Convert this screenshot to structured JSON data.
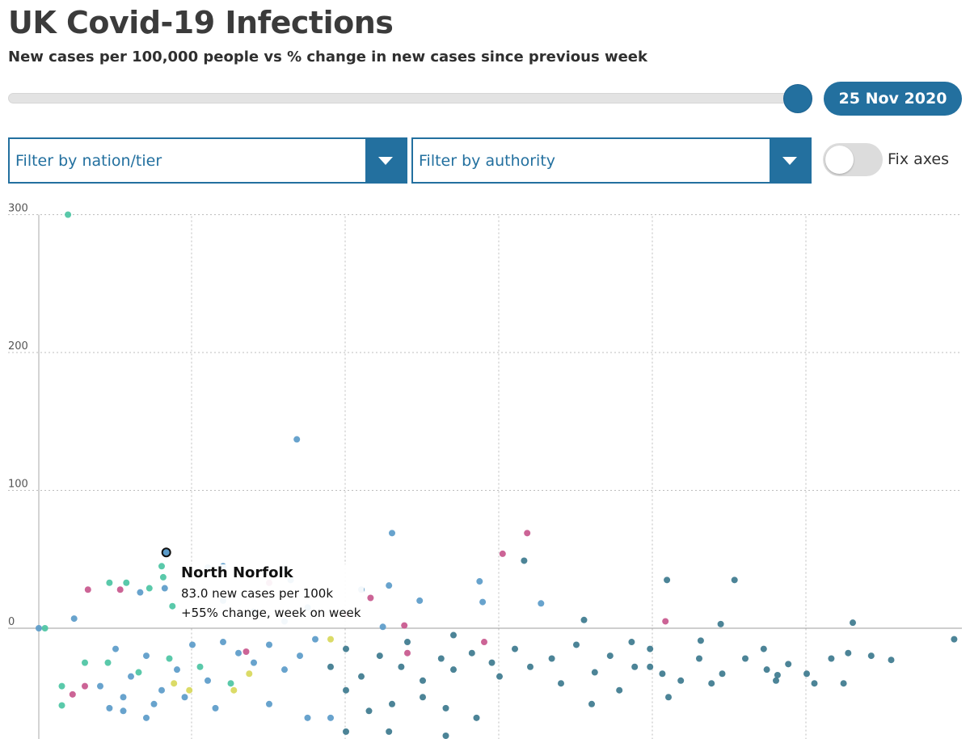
{
  "header": {
    "title": "UK Covid-19 Infections",
    "subtitle": "New cases per 100,000 people vs % change in new cases since previous week"
  },
  "date_slider": {
    "value_label": "25 Nov 2020"
  },
  "filters": {
    "nation_placeholder": "Filter by nation/tier",
    "authority_placeholder": "Filter by authority"
  },
  "toggle": {
    "label": "Fix axes",
    "on": false
  },
  "colors": {
    "accent": "#23709f",
    "series_blue": "#5b9bc9",
    "series_teal": "#3d7a8e",
    "series_green": "#4cc4a3",
    "series_pink": "#c8578d",
    "series_yellow": "#d8d85a"
  },
  "tooltip": {
    "name": "North Norfolk",
    "cases_line": "83.0 new cases per 100k",
    "change_line": "+55% change, week on week"
  },
  "chart_data": {
    "type": "scatter",
    "title": "UK Covid-19 Infections",
    "subtitle": "New cases per 100,000 people vs % change in new cases since previous week",
    "xlabel": "",
    "ylabel": "",
    "ylim": [
      -80,
      300
    ],
    "yticks": [
      0,
      100,
      200,
      300
    ],
    "grid": true,
    "highlight": {
      "name": "North Norfolk",
      "x": 83.0,
      "y": 55
    },
    "points": [
      {
        "x": 0,
        "y": 0,
        "c": "series_blue"
      },
      {
        "x": 4,
        "y": 0,
        "c": "series_green"
      },
      {
        "x": 19,
        "y": 300,
        "c": "series_green"
      },
      {
        "x": 168,
        "y": 137,
        "c": "series_blue"
      },
      {
        "x": 230,
        "y": 69,
        "c": "series_blue"
      },
      {
        "x": 318,
        "y": 69,
        "c": "series_pink"
      },
      {
        "x": 302,
        "y": 54,
        "c": "series_pink"
      },
      {
        "x": 316,
        "y": 49,
        "c": "series_teal"
      },
      {
        "x": 248,
        "y": 20,
        "c": "series_blue"
      },
      {
        "x": 228,
        "y": 31,
        "c": "series_blue"
      },
      {
        "x": 287,
        "y": 34,
        "c": "series_blue"
      },
      {
        "x": 289,
        "y": 19,
        "c": "series_blue"
      },
      {
        "x": 327,
        "y": 18,
        "c": "series_blue"
      },
      {
        "x": 355,
        "y": 6,
        "c": "series_teal"
      },
      {
        "x": 409,
        "y": 35,
        "c": "series_teal"
      },
      {
        "x": 408,
        "y": 5,
        "c": "series_pink"
      },
      {
        "x": 453,
        "y": 35,
        "c": "series_teal"
      },
      {
        "x": 444,
        "y": 3,
        "c": "series_teal"
      },
      {
        "x": 530,
        "y": 4,
        "c": "series_teal"
      },
      {
        "x": 596,
        "y": -8,
        "c": "series_teal"
      },
      {
        "x": 120,
        "y": 45,
        "c": "series_blue"
      },
      {
        "x": 110,
        "y": 44,
        "c": "series_blue"
      },
      {
        "x": 160,
        "y": 43,
        "c": "series_blue"
      },
      {
        "x": 150,
        "y": 33,
        "c": "series_pink"
      },
      {
        "x": 210,
        "y": 28,
        "c": "series_blue"
      },
      {
        "x": 216,
        "y": 22,
        "c": "series_pink"
      },
      {
        "x": 164,
        "y": 35,
        "c": "series_blue"
      },
      {
        "x": 80,
        "y": 45,
        "c": "series_green"
      },
      {
        "x": 81,
        "y": 37,
        "c": "series_green"
      },
      {
        "x": 82,
        "y": 29,
        "c": "series_blue"
      },
      {
        "x": 72,
        "y": 29,
        "c": "series_green"
      },
      {
        "x": 66,
        "y": 26,
        "c": "series_blue"
      },
      {
        "x": 57,
        "y": 33,
        "c": "series_green"
      },
      {
        "x": 53,
        "y": 28,
        "c": "series_pink"
      },
      {
        "x": 46,
        "y": 33,
        "c": "series_green"
      },
      {
        "x": 32,
        "y": 28,
        "c": "series_pink"
      },
      {
        "x": 23,
        "y": 7,
        "c": "series_blue"
      },
      {
        "x": 87,
        "y": 16,
        "c": "series_green"
      },
      {
        "x": 120,
        "y": 20,
        "c": "series_blue"
      },
      {
        "x": 238,
        "y": 2,
        "c": "series_pink"
      },
      {
        "x": 224,
        "y": 1,
        "c": "series_blue"
      },
      {
        "x": 240,
        "y": -10,
        "c": "series_teal"
      },
      {
        "x": 222,
        "y": -20,
        "c": "series_teal"
      },
      {
        "x": 236,
        "y": -28,
        "c": "series_teal"
      },
      {
        "x": 250,
        "y": -38,
        "c": "series_teal"
      },
      {
        "x": 262,
        "y": -22,
        "c": "series_teal"
      },
      {
        "x": 270,
        "y": -30,
        "c": "series_teal"
      },
      {
        "x": 282,
        "y": -18,
        "c": "series_teal"
      },
      {
        "x": 295,
        "y": -25,
        "c": "series_teal"
      },
      {
        "x": 300,
        "y": -35,
        "c": "series_teal"
      },
      {
        "x": 310,
        "y": -15,
        "c": "series_teal"
      },
      {
        "x": 320,
        "y": -28,
        "c": "series_teal"
      },
      {
        "x": 334,
        "y": -22,
        "c": "series_teal"
      },
      {
        "x": 340,
        "y": -40,
        "c": "series_teal"
      },
      {
        "x": 350,
        "y": -12,
        "c": "series_teal"
      },
      {
        "x": 362,
        "y": -32,
        "c": "series_teal"
      },
      {
        "x": 372,
        "y": -20,
        "c": "series_teal"
      },
      {
        "x": 378,
        "y": -45,
        "c": "series_teal"
      },
      {
        "x": 386,
        "y": -10,
        "c": "series_teal"
      },
      {
        "x": 398,
        "y": -28,
        "c": "series_teal"
      },
      {
        "x": 406,
        "y": -33,
        "c": "series_teal"
      },
      {
        "x": 418,
        "y": -38,
        "c": "series_teal"
      },
      {
        "x": 430,
        "y": -22,
        "c": "series_teal"
      },
      {
        "x": 438,
        "y": -40,
        "c": "series_teal"
      },
      {
        "x": 431,
        "y": -9,
        "c": "series_teal"
      },
      {
        "x": 472,
        "y": -15,
        "c": "series_teal"
      },
      {
        "x": 474,
        "y": -30,
        "c": "series_teal"
      },
      {
        "x": 481,
        "y": -34,
        "c": "series_teal"
      },
      {
        "x": 488,
        "y": -26,
        "c": "series_teal"
      },
      {
        "x": 516,
        "y": -22,
        "c": "series_teal"
      },
      {
        "x": 500,
        "y": -33,
        "c": "series_teal"
      },
      {
        "x": 524,
        "y": -40,
        "c": "series_teal"
      },
      {
        "x": 542,
        "y": -20,
        "c": "series_teal"
      },
      {
        "x": 120,
        "y": -10,
        "c": "series_blue"
      },
      {
        "x": 130,
        "y": -18,
        "c": "series_blue"
      },
      {
        "x": 140,
        "y": -25,
        "c": "series_blue"
      },
      {
        "x": 150,
        "y": -12,
        "c": "series_blue"
      },
      {
        "x": 160,
        "y": -30,
        "c": "series_blue"
      },
      {
        "x": 170,
        "y": -20,
        "c": "series_blue"
      },
      {
        "x": 180,
        "y": -8,
        "c": "series_blue"
      },
      {
        "x": 190,
        "y": -28,
        "c": "series_teal"
      },
      {
        "x": 200,
        "y": -15,
        "c": "series_teal"
      },
      {
        "x": 210,
        "y": -35,
        "c": "series_teal"
      },
      {
        "x": 100,
        "y": -12,
        "c": "series_blue"
      },
      {
        "x": 90,
        "y": -30,
        "c": "series_blue"
      },
      {
        "x": 80,
        "y": -45,
        "c": "series_blue"
      },
      {
        "x": 70,
        "y": -20,
        "c": "series_blue"
      },
      {
        "x": 60,
        "y": -35,
        "c": "series_blue"
      },
      {
        "x": 50,
        "y": -15,
        "c": "series_blue"
      },
      {
        "x": 40,
        "y": -42,
        "c": "series_blue"
      },
      {
        "x": 110,
        "y": -38,
        "c": "series_blue"
      },
      {
        "x": 95,
        "y": -50,
        "c": "series_blue"
      },
      {
        "x": 75,
        "y": -55,
        "c": "series_blue"
      },
      {
        "x": 55,
        "y": -60,
        "c": "series_blue"
      },
      {
        "x": 45,
        "y": -25,
        "c": "series_green"
      },
      {
        "x": 65,
        "y": -32,
        "c": "series_green"
      },
      {
        "x": 85,
        "y": -22,
        "c": "series_green"
      },
      {
        "x": 105,
        "y": -28,
        "c": "series_green"
      },
      {
        "x": 125,
        "y": -40,
        "c": "series_green"
      },
      {
        "x": 88,
        "y": -40,
        "c": "series_yellow"
      },
      {
        "x": 98,
        "y": -45,
        "c": "series_yellow"
      },
      {
        "x": 127,
        "y": -45,
        "c": "series_yellow"
      },
      {
        "x": 137,
        "y": -33,
        "c": "series_yellow"
      },
      {
        "x": 190,
        "y": -8,
        "c": "series_yellow"
      },
      {
        "x": 135,
        "y": -17,
        "c": "series_pink"
      },
      {
        "x": 240,
        "y": -18,
        "c": "series_pink"
      },
      {
        "x": 290,
        "y": -10,
        "c": "series_pink"
      },
      {
        "x": 30,
        "y": -42,
        "c": "series_pink"
      },
      {
        "x": 22,
        "y": -48,
        "c": "series_pink"
      },
      {
        "x": 15,
        "y": -42,
        "c": "series_green"
      },
      {
        "x": 15,
        "y": -56,
        "c": "series_green"
      },
      {
        "x": 30,
        "y": -25,
        "c": "series_green"
      },
      {
        "x": 46,
        "y": -58,
        "c": "series_blue"
      },
      {
        "x": 55,
        "y": -50,
        "c": "series_blue"
      },
      {
        "x": 70,
        "y": -65,
        "c": "series_blue"
      },
      {
        "x": 115,
        "y": -58,
        "c": "series_blue"
      },
      {
        "x": 150,
        "y": -55,
        "c": "series_blue"
      },
      {
        "x": 175,
        "y": -65,
        "c": "series_blue"
      },
      {
        "x": 190,
        "y": -65,
        "c": "series_blue"
      },
      {
        "x": 200,
        "y": -45,
        "c": "series_teal"
      },
      {
        "x": 215,
        "y": -60,
        "c": "series_teal"
      },
      {
        "x": 230,
        "y": -55,
        "c": "series_teal"
      },
      {
        "x": 250,
        "y": -50,
        "c": "series_teal"
      },
      {
        "x": 265,
        "y": -58,
        "c": "series_teal"
      },
      {
        "x": 285,
        "y": -65,
        "c": "series_teal"
      },
      {
        "x": 200,
        "y": -75,
        "c": "series_teal"
      },
      {
        "x": 228,
        "y": -75,
        "c": "series_teal"
      },
      {
        "x": 265,
        "y": -78,
        "c": "series_teal"
      },
      {
        "x": 360,
        "y": -55,
        "c": "series_teal"
      },
      {
        "x": 410,
        "y": -50,
        "c": "series_teal"
      },
      {
        "x": 445,
        "y": -33,
        "c": "series_teal"
      },
      {
        "x": 460,
        "y": -22,
        "c": "series_teal"
      },
      {
        "x": 480,
        "y": -38,
        "c": "series_teal"
      },
      {
        "x": 505,
        "y": -40,
        "c": "series_teal"
      },
      {
        "x": 527,
        "y": -18,
        "c": "series_teal"
      },
      {
        "x": 555,
        "y": -23,
        "c": "series_teal"
      },
      {
        "x": 140,
        "y": 12,
        "c": "series_blue"
      },
      {
        "x": 160,
        "y": 5,
        "c": "series_blue"
      },
      {
        "x": 200,
        "y": 10,
        "c": "series_pink"
      },
      {
        "x": 175,
        "y": 15,
        "c": "series_blue"
      },
      {
        "x": 270,
        "y": -5,
        "c": "series_teal"
      },
      {
        "x": 388,
        "y": -28,
        "c": "series_teal"
      },
      {
        "x": 398,
        "y": -15,
        "c": "series_teal"
      }
    ]
  }
}
